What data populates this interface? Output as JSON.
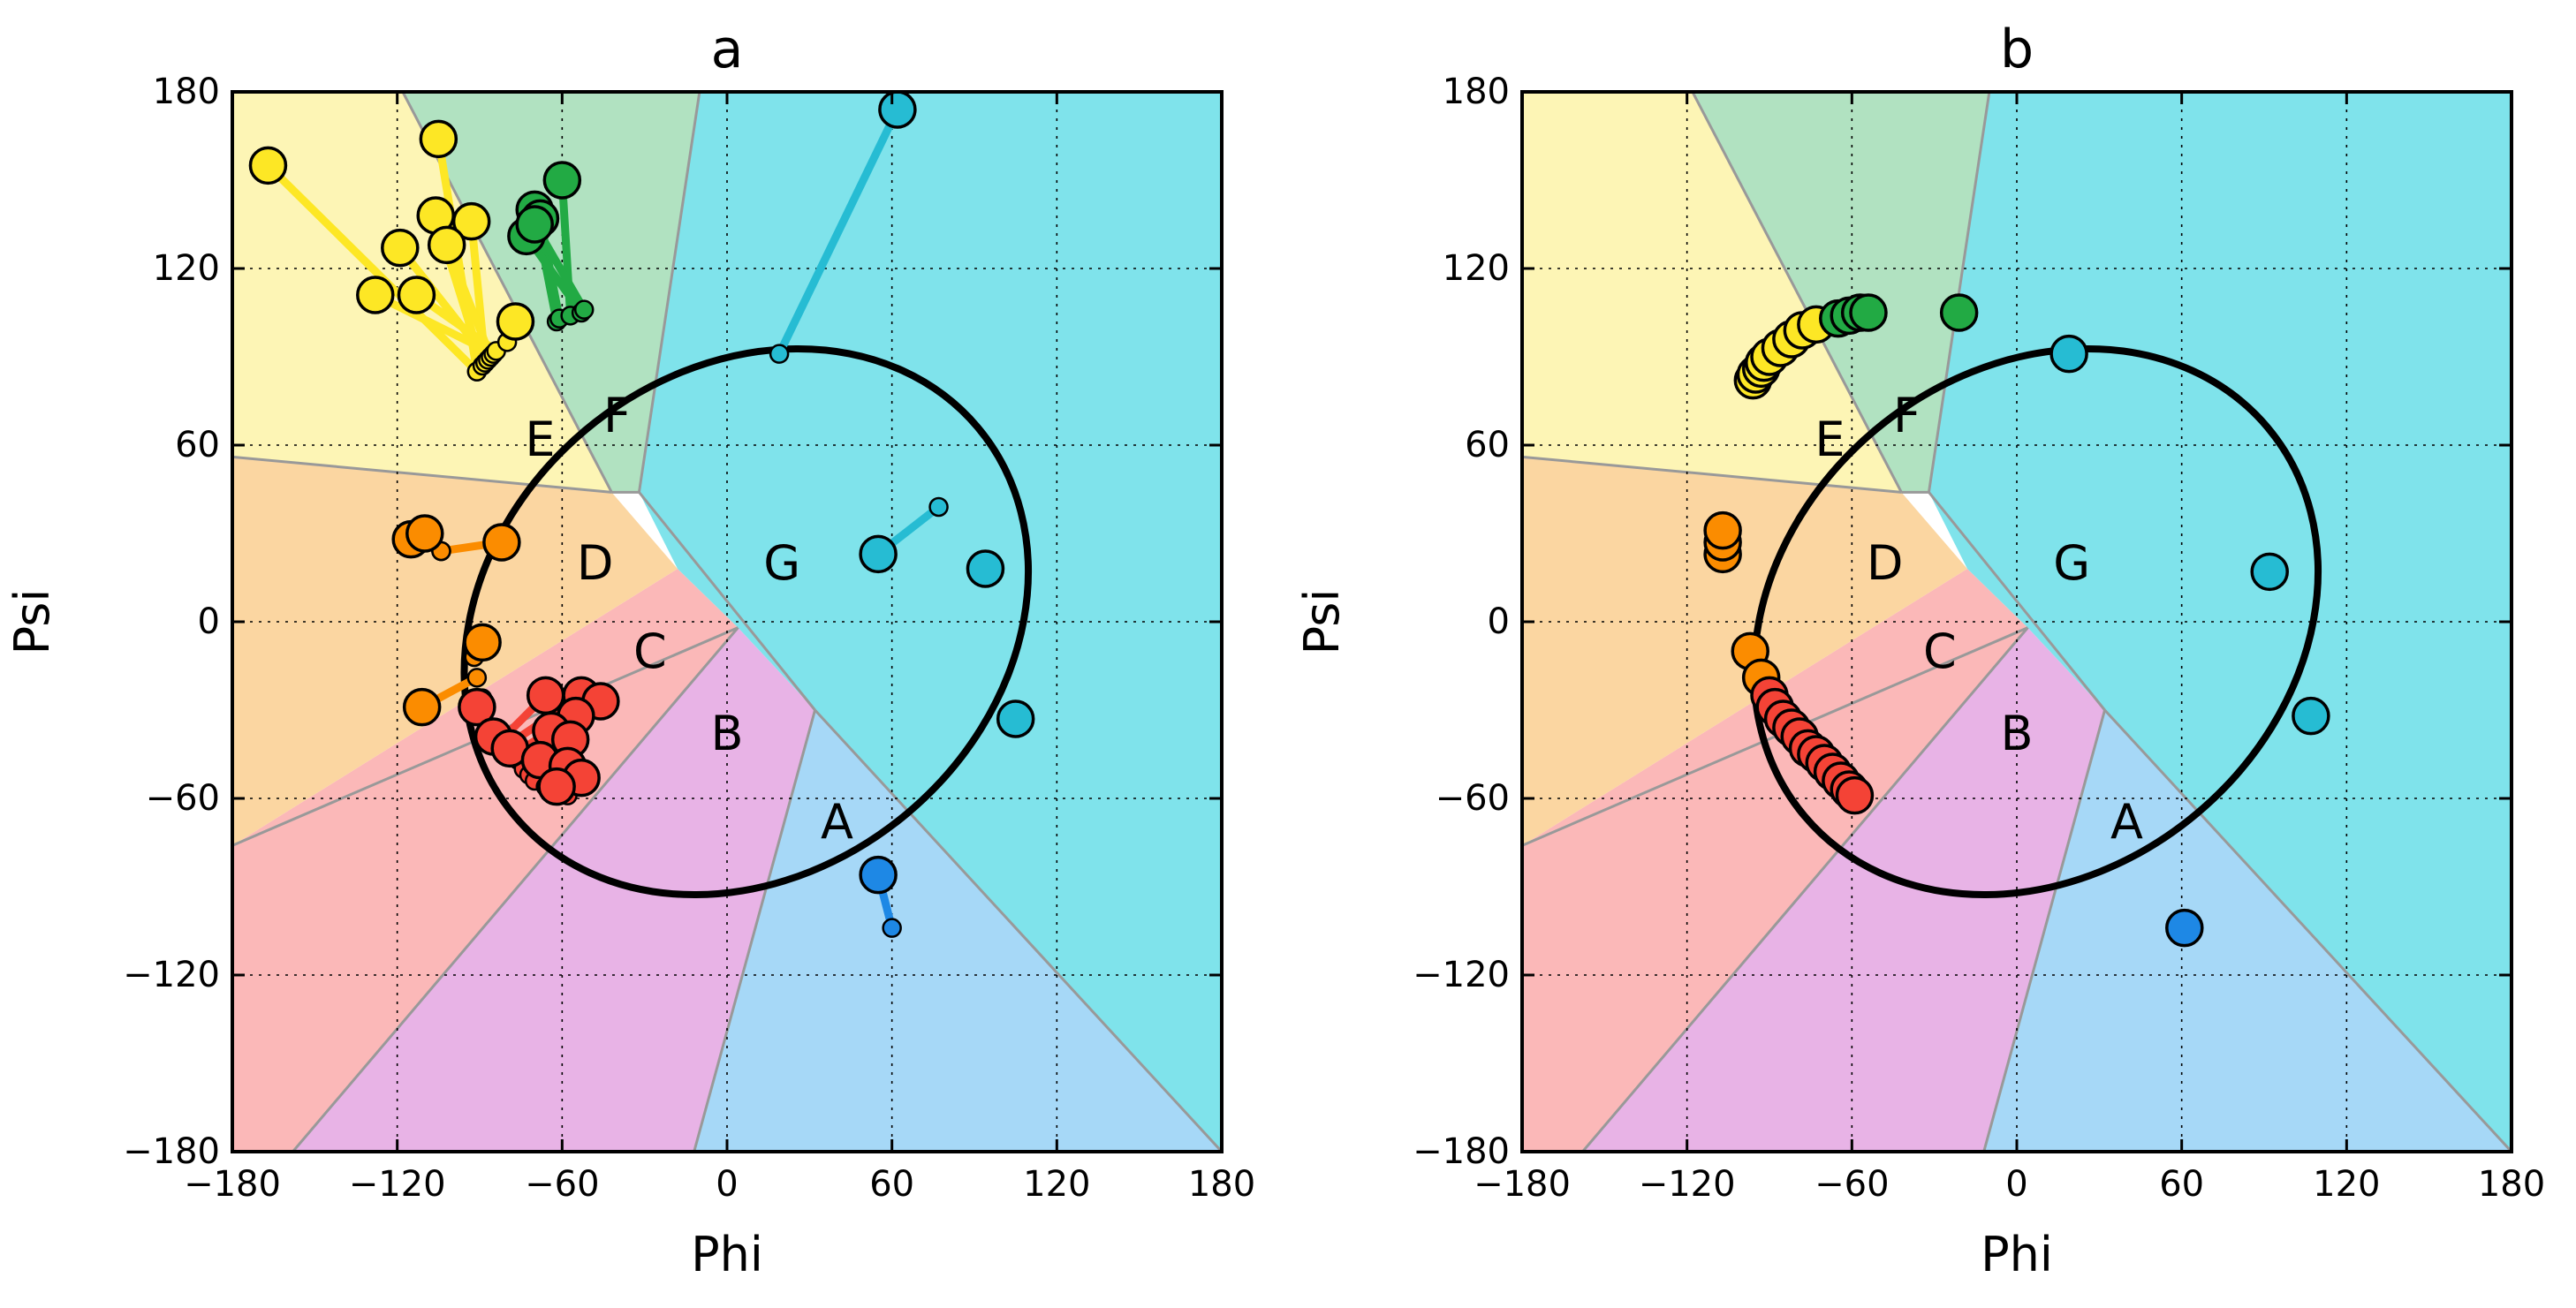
{
  "colors": {
    "A": "#a6d8f7",
    "B": "#e8b3e6",
    "C": "#fbb8b8",
    "D": "#fbd6a1",
    "E": "#fdf5b5",
    "F": "#b1e2c1",
    "G": "#7fe3eb",
    "boundary": "#999999",
    "ellipse": "#000000",
    "points": {
      "A": "#1e88e5",
      "C": "#f44336",
      "D": "#fb8c00",
      "E": "#fde725",
      "F": "#22aa44",
      "G": "#26bcd3"
    }
  },
  "chart_data": [
    {
      "type": "scatter",
      "title": "a",
      "xlabel": "Phi",
      "ylabel": "Psi",
      "xlim": [
        -180,
        180
      ],
      "ylim": [
        -180,
        180
      ],
      "xticks": [
        "−180",
        "−120",
        "−60",
        "0",
        "60",
        "120",
        "180"
      ],
      "yticks": [
        "180",
        "120",
        "60",
        "0",
        "−60",
        "−120",
        "−180"
      ],
      "xtick_values": [
        -180,
        -120,
        -60,
        0,
        60,
        120,
        180
      ],
      "ytick_values": [
        180,
        120,
        60,
        0,
        -60,
        -120,
        -180
      ],
      "grid": true,
      "regions": [
        {
          "name": "A",
          "label": "A",
          "label_at": [
            40,
            -68
          ]
        },
        {
          "name": "B",
          "label": "B",
          "label_at": [
            0,
            -38
          ]
        },
        {
          "name": "C",
          "label": "C",
          "label_at": [
            -28,
            -10
          ]
        },
        {
          "name": "D",
          "label": "D",
          "label_at": [
            -48,
            20
          ]
        },
        {
          "name": "E",
          "label": "E",
          "label_at": [
            -68,
            62
          ]
        },
        {
          "name": "F",
          "label": "F",
          "label_at": [
            -40,
            70
          ]
        },
        {
          "name": "G",
          "label": "G",
          "label_at": [
            20,
            20
          ]
        }
      ],
      "ellipse": {
        "center_phi": 7,
        "center_psi": 0,
        "a": 110,
        "b": 85,
        "rotation_deg": -40
      },
      "points": [
        {
          "region": "E",
          "phi": -167,
          "psi": 155,
          "ellipse_phi": -91,
          "ellipse_psi": 85
        },
        {
          "region": "E",
          "phi": -105,
          "psi": 164,
          "ellipse_phi": -91,
          "ellipse_psi": 85
        },
        {
          "region": "E",
          "phi": -106,
          "psi": 138,
          "ellipse_phi": -89,
          "ellipse_psi": 87
        },
        {
          "region": "E",
          "phi": -93,
          "psi": 136,
          "ellipse_phi": -88,
          "ellipse_psi": 88
        },
        {
          "region": "E",
          "phi": -119,
          "psi": 127,
          "ellipse_phi": -87,
          "ellipse_psi": 89
        },
        {
          "region": "E",
          "phi": -102,
          "psi": 128,
          "ellipse_phi": -86,
          "ellipse_psi": 90
        },
        {
          "region": "E",
          "phi": -128,
          "psi": 111,
          "ellipse_phi": -85,
          "ellipse_psi": 91
        },
        {
          "region": "E",
          "phi": -113,
          "psi": 111,
          "ellipse_phi": -84,
          "ellipse_psi": 92
        },
        {
          "region": "E",
          "phi": -77,
          "psi": 102,
          "ellipse_phi": -80,
          "ellipse_psi": 95
        },
        {
          "region": "F",
          "phi": -70,
          "psi": 140,
          "ellipse_phi": -62,
          "ellipse_psi": 102
        },
        {
          "region": "F",
          "phi": -68,
          "psi": 137,
          "ellipse_phi": -61,
          "ellipse_psi": 103
        },
        {
          "region": "F",
          "phi": -60,
          "psi": 150,
          "ellipse_phi": -57,
          "ellipse_psi": 104
        },
        {
          "region": "F",
          "phi": -73,
          "psi": 131,
          "ellipse_phi": -53,
          "ellipse_psi": 105
        },
        {
          "region": "F",
          "phi": -70,
          "psi": 135,
          "ellipse_phi": -52,
          "ellipse_psi": 106
        },
        {
          "region": "G",
          "phi": 62,
          "psi": 174,
          "ellipse_phi": 19,
          "ellipse_psi": 91
        },
        {
          "region": "G",
          "phi": 55,
          "psi": 23,
          "ellipse_phi": 77,
          "ellipse_psi": 39
        },
        {
          "region": "G",
          "phi": 94,
          "psi": 18,
          "ellipse_phi": 94,
          "ellipse_psi": 18
        },
        {
          "region": "G",
          "phi": 105,
          "psi": -33,
          "ellipse_phi": 105,
          "ellipse_psi": -33
        },
        {
          "region": "A",
          "phi": 55,
          "psi": -86,
          "ellipse_phi": 60,
          "ellipse_psi": -104
        },
        {
          "region": "D",
          "phi": -115,
          "psi": 28,
          "ellipse_phi": -104,
          "ellipse_psi": 24
        },
        {
          "region": "D",
          "phi": -110,
          "psi": 30,
          "ellipse_phi": -104,
          "ellipse_psi": 24
        },
        {
          "region": "D",
          "phi": -82,
          "psi": 27,
          "ellipse_phi": -104,
          "ellipse_psi": 24
        },
        {
          "region": "D",
          "phi": -89,
          "psi": -7,
          "ellipse_phi": -92,
          "ellipse_psi": -12
        },
        {
          "region": "D",
          "phi": -111,
          "psi": -29,
          "ellipse_phi": -91,
          "ellipse_psi": -19
        },
        {
          "region": "C",
          "phi": -91,
          "psi": -29,
          "ellipse_phi": -89,
          "ellipse_psi": -26
        },
        {
          "region": "C",
          "phi": -85,
          "psi": -39,
          "ellipse_phi": -84,
          "ellipse_psi": -37
        },
        {
          "region": "C",
          "phi": -66,
          "psi": -25,
          "ellipse_phi": -82,
          "ellipse_psi": -40
        },
        {
          "region": "C",
          "phi": -53,
          "psi": -25,
          "ellipse_phi": -80,
          "ellipse_psi": -42
        },
        {
          "region": "C",
          "phi": -46,
          "psi": -27,
          "ellipse_phi": -78,
          "ellipse_psi": -45
        },
        {
          "region": "C",
          "phi": -55,
          "psi": -32,
          "ellipse_phi": -76,
          "ellipse_psi": -47
        },
        {
          "region": "C",
          "phi": -64,
          "psi": -37,
          "ellipse_phi": -74,
          "ellipse_psi": -50
        },
        {
          "region": "C",
          "phi": -57,
          "psi": -40,
          "ellipse_phi": -72,
          "ellipse_psi": -52
        },
        {
          "region": "C",
          "phi": -79,
          "psi": -43,
          "ellipse_phi": -70,
          "ellipse_psi": -54
        },
        {
          "region": "C",
          "phi": -68,
          "psi": -47,
          "ellipse_phi": -66,
          "ellipse_psi": -56
        },
        {
          "region": "C",
          "phi": -58,
          "psi": -49,
          "ellipse_phi": -63,
          "ellipse_psi": -57
        },
        {
          "region": "C",
          "phi": -53,
          "psi": -53,
          "ellipse_phi": -60,
          "ellipse_psi": -58
        },
        {
          "region": "C",
          "phi": -62,
          "psi": -56,
          "ellipse_phi": -58,
          "ellipse_psi": -59
        }
      ]
    },
    {
      "type": "scatter",
      "title": "b",
      "xlabel": "Phi",
      "ylabel": "Psi",
      "xlim": [
        -180,
        180
      ],
      "ylim": [
        -180,
        180
      ],
      "xticks": [
        "−180",
        "−120",
        "−60",
        "0",
        "60",
        "120",
        "180"
      ],
      "yticks": [
        "180",
        "120",
        "60",
        "0",
        "−60",
        "−120",
        "−180"
      ],
      "xtick_values": [
        -180,
        -120,
        -60,
        0,
        60,
        120,
        180
      ],
      "ytick_values": [
        180,
        120,
        60,
        0,
        -60,
        -120,
        -180
      ],
      "grid": true,
      "regions": [
        {
          "name": "A",
          "label": "A",
          "label_at": [
            40,
            -68
          ]
        },
        {
          "name": "B",
          "label": "B",
          "label_at": [
            0,
            -38
          ]
        },
        {
          "name": "C",
          "label": "C",
          "label_at": [
            -28,
            -10
          ]
        },
        {
          "name": "D",
          "label": "D",
          "label_at": [
            -48,
            20
          ]
        },
        {
          "name": "E",
          "label": "E",
          "label_at": [
            -68,
            62
          ]
        },
        {
          "name": "F",
          "label": "F",
          "label_at": [
            -40,
            70
          ]
        },
        {
          "name": "G",
          "label": "G",
          "label_at": [
            20,
            20
          ]
        }
      ],
      "ellipse": {
        "center_phi": 7,
        "center_psi": 0,
        "a": 110,
        "b": 85,
        "rotation_deg": -40
      },
      "points": [
        {
          "region": "E",
          "phi": -96,
          "psi": 82
        },
        {
          "region": "E",
          "phi": -95,
          "psi": 84
        },
        {
          "region": "E",
          "phi": -93,
          "psi": 86
        },
        {
          "region": "E",
          "phi": -92,
          "psi": 88
        },
        {
          "region": "E",
          "phi": -90,
          "psi": 90
        },
        {
          "region": "E",
          "phi": -86,
          "psi": 93
        },
        {
          "region": "E",
          "phi": -82,
          "psi": 96
        },
        {
          "region": "E",
          "phi": -78,
          "psi": 99
        },
        {
          "region": "E",
          "phi": -73,
          "psi": 101
        },
        {
          "region": "F",
          "phi": -65,
          "psi": 103
        },
        {
          "region": "F",
          "phi": -61,
          "psi": 104
        },
        {
          "region": "F",
          "phi": -57,
          "psi": 105
        },
        {
          "region": "F",
          "phi": -54,
          "psi": 105
        },
        {
          "region": "F",
          "phi": -21,
          "psi": 105
        },
        {
          "region": "G",
          "phi": 19,
          "psi": 91
        },
        {
          "region": "G",
          "phi": 92,
          "psi": 17
        },
        {
          "region": "G",
          "phi": 107,
          "psi": -32
        },
        {
          "region": "A",
          "phi": 61,
          "psi": -104
        },
        {
          "region": "D",
          "phi": -107,
          "psi": 23
        },
        {
          "region": "D",
          "phi": -107,
          "psi": 27
        },
        {
          "region": "D",
          "phi": -107,
          "psi": 31
        },
        {
          "region": "D",
          "phi": -97,
          "psi": -10
        },
        {
          "region": "D",
          "phi": -93,
          "psi": -19
        },
        {
          "region": "C",
          "phi": -90,
          "psi": -25
        },
        {
          "region": "C",
          "phi": -88,
          "psi": -29
        },
        {
          "region": "C",
          "phi": -85,
          "psi": -33
        },
        {
          "region": "C",
          "phi": -82,
          "psi": -36
        },
        {
          "region": "C",
          "phi": -79,
          "psi": -39
        },
        {
          "region": "C",
          "phi": -76,
          "psi": -43
        },
        {
          "region": "C",
          "phi": -73,
          "psi": -45
        },
        {
          "region": "C",
          "phi": -70,
          "psi": -48
        },
        {
          "region": "C",
          "phi": -67,
          "psi": -51
        },
        {
          "region": "C",
          "phi": -64,
          "psi": -54
        },
        {
          "region": "C",
          "phi": -61,
          "psi": -57
        },
        {
          "region": "C",
          "phi": -59,
          "psi": -59
        }
      ]
    }
  ]
}
